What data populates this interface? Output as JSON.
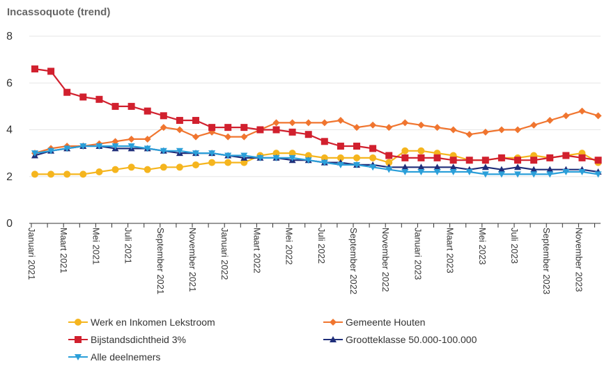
{
  "chart_data": {
    "type": "line",
    "title": "Incassoquote (trend)",
    "xlabel": "",
    "ylabel": "",
    "ylim": [
      0,
      8
    ],
    "yticks": [
      0,
      2,
      4,
      6,
      8
    ],
    "grid": "horizontal",
    "legend_position": "bottom",
    "categories": [
      "Januari 2021",
      "Februari 2021",
      "Maart 2021",
      "April 2021",
      "Mei 2021",
      "Juni 2021",
      "Juli 2021",
      "Augustus 2021",
      "September 2021",
      "Oktober 2021",
      "November 2021",
      "December 2021",
      "Januari 2022",
      "Februari 2022",
      "Maart 2022",
      "April 2022",
      "Mei 2022",
      "Juni 2022",
      "Juli 2022",
      "Augustus 2022",
      "September 2022",
      "Oktober 2022",
      "November 2022",
      "December 2022",
      "Januari 2023",
      "Februari 2023",
      "Maart 2023",
      "April 2023",
      "Mei 2023",
      "Juni 2023",
      "Juli 2023",
      "Augustus 2023",
      "September 2023",
      "Oktober 2023",
      "November 2023",
      "December 2023"
    ],
    "tick_labels": [
      "Januari 2021",
      "",
      "Maart 2021",
      "",
      "Mei 2021",
      "",
      "Juli 2021",
      "",
      "September 2021",
      "",
      "November 2021",
      "",
      "Januari 2022",
      "",
      "Maart 2022",
      "",
      "Mei 2022",
      "",
      "Juli 2022",
      "",
      "September 2022",
      "",
      "November 2022",
      "",
      "Januari 2023",
      "",
      "Maart 2023",
      "",
      "Mei 2023",
      "",
      "Juli 2023",
      "",
      "September 2023",
      "",
      "November 2023",
      ""
    ],
    "series": [
      {
        "name": "Werk en Inkomen Lekstroom",
        "color": "#f5b51e",
        "marker": "circle",
        "values": [
          2.1,
          2.1,
          2.1,
          2.1,
          2.2,
          2.3,
          2.4,
          2.3,
          2.4,
          2.4,
          2.5,
          2.6,
          2.6,
          2.6,
          2.9,
          3.0,
          3.0,
          2.9,
          2.8,
          2.8,
          2.8,
          2.8,
          2.6,
          3.1,
          3.1,
          3.0,
          2.9,
          2.7,
          2.7,
          2.8,
          2.8,
          2.9,
          2.8,
          2.9,
          3.0,
          2.6
        ]
      },
      {
        "name": "Gemeente Houten",
        "color": "#f0752f",
        "marker": "diamond",
        "values": [
          3.0,
          3.2,
          3.3,
          3.3,
          3.4,
          3.5,
          3.6,
          3.6,
          4.1,
          4.0,
          3.7,
          3.9,
          3.7,
          3.7,
          4.0,
          4.3,
          4.3,
          4.3,
          4.3,
          4.4,
          4.1,
          4.2,
          4.1,
          4.3,
          4.2,
          4.1,
          4.0,
          3.8,
          3.9,
          4.0,
          4.0,
          4.2,
          4.4,
          4.6,
          4.8,
          4.6
        ]
      },
      {
        "name": "Bijstandsdichtheid 3%",
        "color": "#d1202e",
        "marker": "square",
        "values": [
          6.6,
          6.5,
          5.6,
          5.4,
          5.3,
          5.0,
          5.0,
          4.8,
          4.6,
          4.4,
          4.4,
          4.1,
          4.1,
          4.1,
          4.0,
          4.0,
          3.9,
          3.8,
          3.5,
          3.3,
          3.3,
          3.2,
          2.9,
          2.8,
          2.8,
          2.8,
          2.7,
          2.7,
          2.7,
          2.8,
          2.7,
          2.7,
          2.8,
          2.9,
          2.8,
          2.7
        ]
      },
      {
        "name": "Grootteklasse 50.000-100.000",
        "color": "#1f2e7a",
        "marker": "triangle",
        "values": [
          2.9,
          3.1,
          3.2,
          3.3,
          3.3,
          3.2,
          3.2,
          3.2,
          3.1,
          3.0,
          3.0,
          3.0,
          2.9,
          2.8,
          2.8,
          2.8,
          2.7,
          2.7,
          2.6,
          2.6,
          2.5,
          2.5,
          2.4,
          2.4,
          2.4,
          2.4,
          2.4,
          2.3,
          2.4,
          2.3,
          2.4,
          2.3,
          2.3,
          2.3,
          2.3,
          2.2
        ]
      },
      {
        "name": "Alle deelnemers",
        "color": "#2b9fd9",
        "marker": "triangle-down",
        "values": [
          3.0,
          3.1,
          3.2,
          3.3,
          3.3,
          3.3,
          3.3,
          3.2,
          3.1,
          3.1,
          3.0,
          3.0,
          2.9,
          2.9,
          2.8,
          2.8,
          2.8,
          2.7,
          2.6,
          2.5,
          2.5,
          2.4,
          2.3,
          2.2,
          2.2,
          2.2,
          2.2,
          2.2,
          2.1,
          2.1,
          2.1,
          2.1,
          2.1,
          2.2,
          2.2,
          2.1
        ]
      }
    ]
  }
}
